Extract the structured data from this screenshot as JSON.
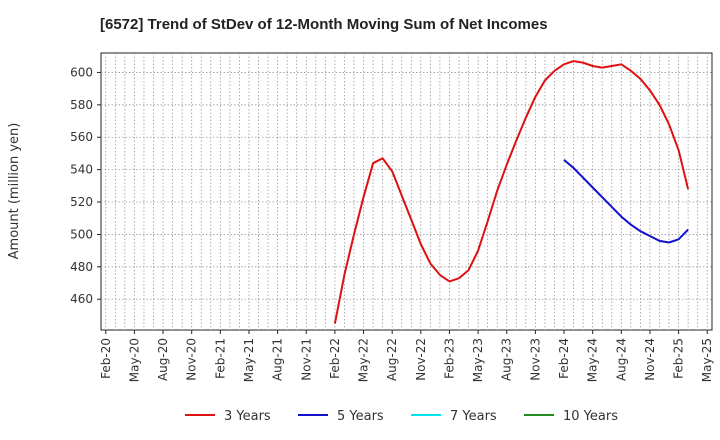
{
  "chart_data": {
    "type": "line",
    "title": "[6572]  Trend of StDev of 12-Month Moving Sum of Net Incomes",
    "ylabel": "Amount (million yen)",
    "xlabel": "",
    "x_ticks": [
      "Feb-20",
      "May-20",
      "Aug-20",
      "Nov-20",
      "Feb-21",
      "May-21",
      "Aug-21",
      "Nov-21",
      "Feb-22",
      "May-22",
      "Aug-22",
      "Nov-22",
      "Feb-23",
      "May-23",
      "Aug-23",
      "Nov-23",
      "Feb-24",
      "May-24",
      "Aug-24",
      "Nov-24",
      "Feb-25",
      "May-25"
    ],
    "y_ticks": [
      460,
      480,
      500,
      520,
      540,
      560,
      580,
      600
    ],
    "ylim": [
      441,
      612
    ],
    "grid": true,
    "legend_position": "bottom",
    "series": [
      {
        "name": "3 Years",
        "color": "#dd1111",
        "points": [
          [
            "Feb-22",
            445
          ],
          [
            "Mar-22",
            475
          ],
          [
            "Apr-22",
            500
          ],
          [
            "May-22",
            523
          ],
          [
            "Jun-22",
            544
          ],
          [
            "Jul-22",
            547
          ],
          [
            "Aug-22",
            539
          ],
          [
            "Sep-22",
            524
          ],
          [
            "Oct-22",
            509
          ],
          [
            "Nov-22",
            494
          ],
          [
            "Dec-22",
            482
          ],
          [
            "Jan-23",
            475
          ],
          [
            "Feb-23",
            471
          ],
          [
            "Mar-23",
            473
          ],
          [
            "Apr-23",
            478
          ],
          [
            "May-23",
            490
          ],
          [
            "Jun-23",
            508
          ],
          [
            "Jul-23",
            527
          ],
          [
            "Aug-23",
            543
          ],
          [
            "Sep-23",
            558
          ],
          [
            "Oct-23",
            572
          ],
          [
            "Nov-23",
            585
          ],
          [
            "Dec-23",
            595
          ],
          [
            "Jan-24",
            601
          ],
          [
            "Feb-24",
            605
          ],
          [
            "Mar-24",
            607
          ],
          [
            "Apr-24",
            606
          ],
          [
            "May-24",
            604
          ],
          [
            "Jun-24",
            603
          ],
          [
            "Jul-24",
            604
          ],
          [
            "Aug-24",
            605
          ],
          [
            "Sep-24",
            601
          ],
          [
            "Oct-24",
            596
          ],
          [
            "Nov-24",
            589
          ],
          [
            "Dec-24",
            580
          ],
          [
            "Jan-25",
            568
          ],
          [
            "Feb-25",
            552
          ],
          [
            "Mar-25",
            528
          ]
        ]
      },
      {
        "name": "5 Years",
        "color": "#1111cc",
        "points": [
          [
            "Feb-24",
            546
          ],
          [
            "Mar-24",
            541
          ],
          [
            "Apr-24",
            535
          ],
          [
            "May-24",
            529
          ],
          [
            "Jun-24",
            523
          ],
          [
            "Jul-24",
            517
          ],
          [
            "Aug-24",
            511
          ],
          [
            "Sep-24",
            506
          ],
          [
            "Oct-24",
            502
          ],
          [
            "Nov-24",
            499
          ],
          [
            "Dec-24",
            496
          ],
          [
            "Jan-25",
            495
          ],
          [
            "Feb-25",
            497
          ],
          [
            "Mar-25",
            503
          ]
        ]
      },
      {
        "name": "7 Years",
        "color": "#00e5ee",
        "points": []
      },
      {
        "name": "10 Years",
        "color": "#228b22",
        "points": []
      }
    ]
  }
}
